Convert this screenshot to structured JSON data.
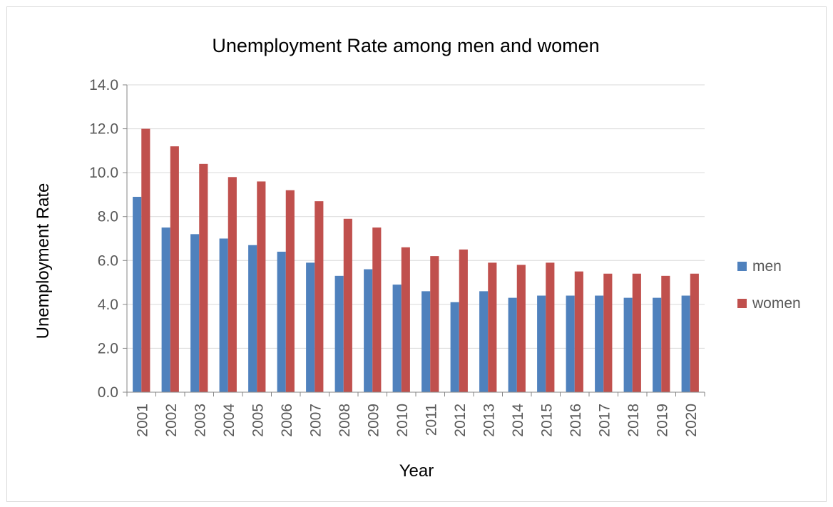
{
  "chart_data": {
    "type": "bar",
    "title": "Unemployment Rate among men and women",
    "xlabel": "Year",
    "ylabel": "Unemployment Rate",
    "categories": [
      "2001",
      "2002",
      "2003",
      "2004",
      "2005",
      "2006",
      "2007",
      "2008",
      "2009",
      "2010",
      "2011",
      "2012",
      "2013",
      "2014",
      "2015",
      "2016",
      "2017",
      "2018",
      "2019",
      "2020"
    ],
    "series": [
      {
        "name": "men",
        "color": "#4F81BD",
        "values": [
          8.9,
          7.5,
          7.2,
          7.0,
          6.7,
          6.4,
          5.9,
          5.3,
          5.6,
          4.9,
          4.6,
          4.1,
          4.6,
          4.3,
          4.4,
          4.4,
          4.4,
          4.3,
          4.3,
          4.4
        ]
      },
      {
        "name": "women",
        "color": "#C0504D",
        "values": [
          12.0,
          11.2,
          10.4,
          9.8,
          9.6,
          9.2,
          8.7,
          7.9,
          7.5,
          6.6,
          6.2,
          6.5,
          5.9,
          5.8,
          5.9,
          5.5,
          5.4,
          5.4,
          5.3,
          5.4
        ]
      }
    ],
    "ylim": [
      0,
      14
    ],
    "yticks": [
      "0.0",
      "2.0",
      "4.0",
      "6.0",
      "8.0",
      "10.0",
      "12.0",
      "14.0"
    ],
    "ytick_values": [
      0,
      2,
      4,
      6,
      8,
      10,
      12,
      14
    ],
    "grid": true,
    "legend_position": "right"
  }
}
